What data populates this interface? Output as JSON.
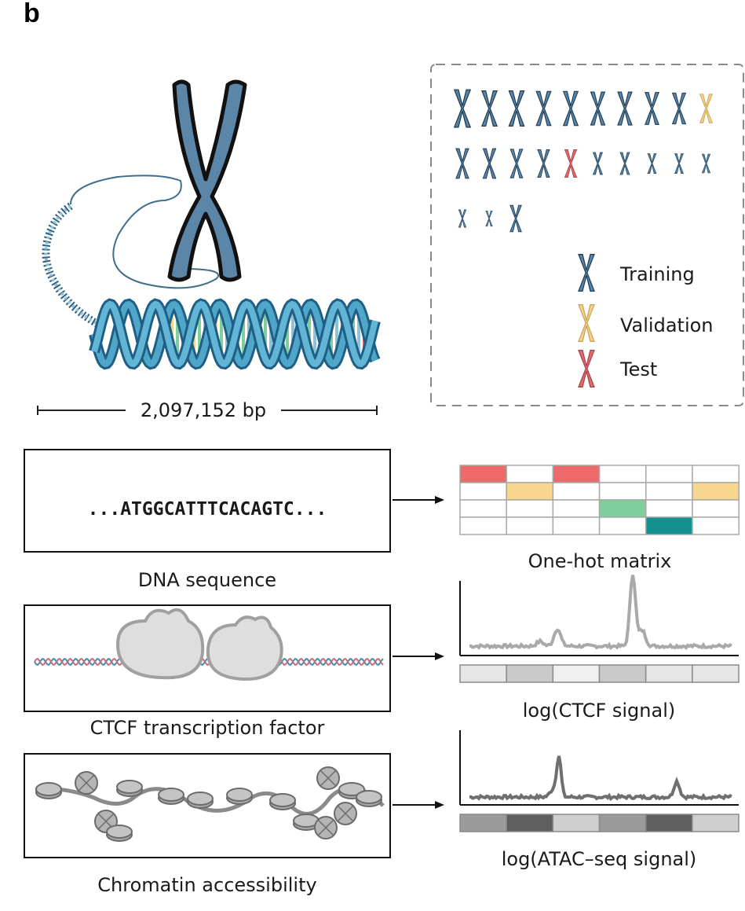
{
  "panel_label": "b",
  "genome_window": {
    "length_label": "2,097,152 bp"
  },
  "legend": {
    "training": "Training",
    "validation": "Validation",
    "test": "Test"
  },
  "colors": {
    "chromosome_blue": "#5b86a8",
    "chromosome_outline": "#1f3d57",
    "validation": "#f3d28a",
    "test": "#e26b6e",
    "onehot_red": "#ec6a6a",
    "onehot_yellow": "#f7d78e",
    "onehot_green": "#7fcf9d",
    "onehot_teal": "#13918f"
  },
  "chromosome_split": [
    "train",
    "train",
    "train",
    "train",
    "train",
    "train",
    "train",
    "train",
    "train",
    "validation",
    "train",
    "train",
    "train",
    "train",
    "test",
    "train",
    "train",
    "train",
    "train",
    "train",
    "train",
    "train",
    "train"
  ],
  "inputs": [
    {
      "caption": "DNA sequence",
      "sequence": "...ATGGCATTTCACAGTC...",
      "output_caption": "One-hot matrix"
    },
    {
      "caption": "CTCF transcription factor",
      "output_caption": "log(CTCF signal)"
    },
    {
      "caption": "Chromatin accessibility",
      "output_caption": "log(ATAC–seq signal)"
    }
  ]
}
